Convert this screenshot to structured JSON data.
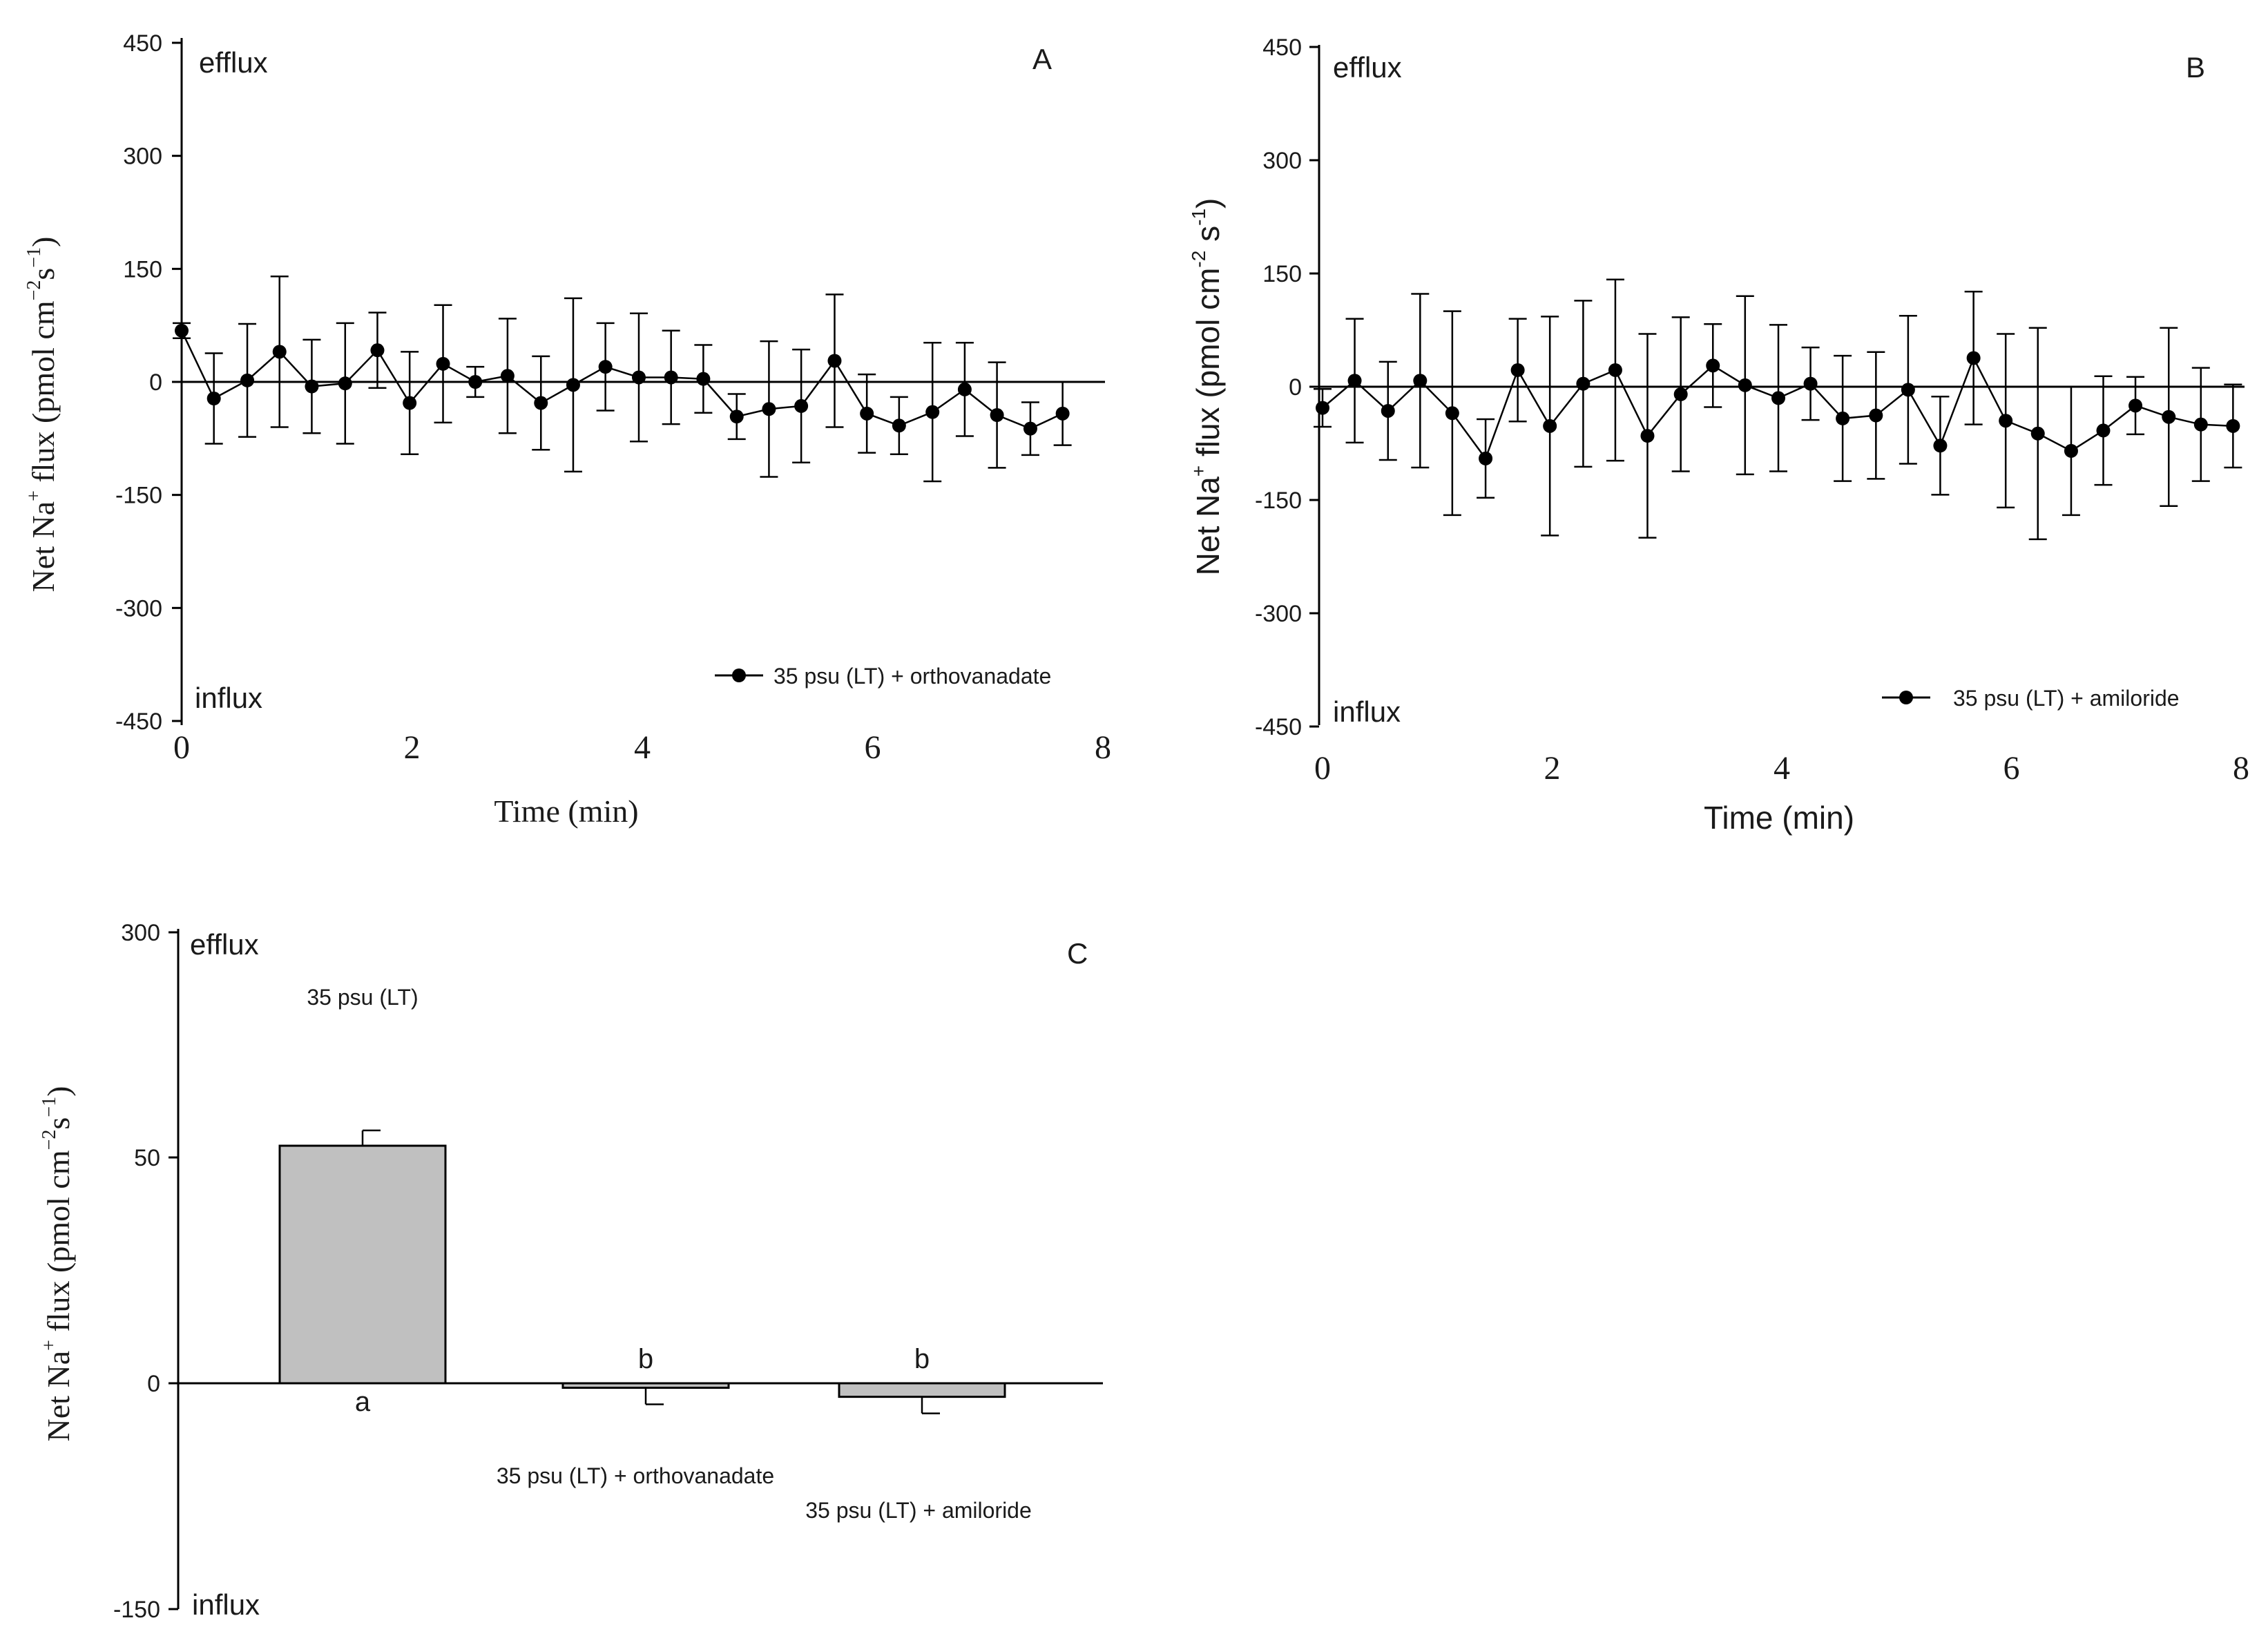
{
  "chart_data": [
    {
      "type": "line",
      "panel": "A",
      "xlabel": "Time (min)",
      "ylabel": "Net Na⁺ flux (pmol cm⁻² s⁻¹)",
      "xlim": [
        0,
        8
      ],
      "ylim": [
        -450,
        450
      ],
      "xticks": [
        0,
        2,
        4,
        6,
        8
      ],
      "yticks": [
        450,
        300,
        150,
        0,
        -150,
        -300,
        -450
      ],
      "top_label": "efflux",
      "bottom_label": "influx",
      "series": [
        {
          "name": "35 psu (LT) + orthovanadate",
          "x": [
            0,
            0.28,
            0.57,
            0.85,
            1.13,
            1.42,
            1.7,
            1.98,
            2.27,
            2.55,
            2.83,
            3.12,
            3.4,
            3.68,
            3.97,
            4.25,
            4.53,
            4.82,
            5.1,
            5.38,
            5.67,
            5.95,
            6.23,
            6.52,
            6.8,
            7.08,
            7.37,
            7.65
          ],
          "y": [
            68,
            -22,
            2,
            40,
            -6,
            -2,
            42,
            -28,
            24,
            0,
            8,
            -28,
            -4,
            20,
            6,
            6,
            4,
            -46,
            -36,
            -32,
            28,
            -42,
            -58,
            -40,
            -10,
            -44,
            -62,
            -42
          ],
          "err": [
            10,
            60,
            75,
            100,
            62,
            80,
            50,
            68,
            78,
            20,
            76,
            62,
            115,
            58,
            85,
            62,
            45,
            30,
            90,
            75,
            88,
            52,
            38,
            92,
            62,
            70,
            35,
            42
          ]
        }
      ]
    },
    {
      "type": "line",
      "panel": "B",
      "xlabel": "Time (min)",
      "ylabel": "Net Na⁺ flux (pmol cm⁻² s⁻¹)",
      "xlim": [
        0,
        8
      ],
      "ylim": [
        -450,
        450
      ],
      "xticks": [
        0,
        2,
        4,
        6,
        8
      ],
      "yticks": [
        450,
        300,
        150,
        0,
        -150,
        -300,
        -450
      ],
      "top_label": "efflux",
      "bottom_label": "influx",
      "series": [
        {
          "name": "35 psu (LT) + amiloride",
          "x": [
            0,
            0.28,
            0.57,
            0.85,
            1.13,
            1.42,
            1.7,
            1.98,
            2.27,
            2.55,
            2.83,
            3.12,
            3.4,
            3.68,
            3.97,
            4.25,
            4.53,
            4.82,
            5.1,
            5.38,
            5.67,
            5.95,
            6.23,
            6.52,
            6.8,
            7.08,
            7.37,
            7.65,
            7.93
          ],
          "y": [
            -28,
            8,
            -32,
            8,
            -35,
            -95,
            22,
            -52,
            4,
            22,
            -65,
            -10,
            28,
            2,
            -15,
            4,
            -42,
            -38,
            -4,
            -78,
            38,
            -45,
            -62,
            -85,
            -58,
            -25,
            -40,
            -50,
            -52
          ],
          "err": [
            25,
            82,
            65,
            115,
            135,
            52,
            68,
            145,
            110,
            120,
            135,
            102,
            55,
            118,
            97,
            48,
            83,
            84,
            98,
            65,
            88,
            115,
            140,
            85,
            72,
            38,
            118,
            75,
            55
          ]
        }
      ]
    },
    {
      "type": "bar",
      "panel": "C",
      "ylabel": "Net Na⁺ flux (pmol cm⁻² s⁻¹)",
      "ylim": [
        -150,
        300
      ],
      "yticks": [
        300,
        50,
        0,
        -150
      ],
      "top_label": "efflux",
      "bottom_label": "influx",
      "categories": [
        "35 psu (LT)",
        "35 psu (LT) + orthovanadate",
        "35 psu (LT) + amiloride"
      ],
      "values": [
        63,
        -3,
        -9
      ],
      "err": [
        17,
        11,
        11
      ],
      "significance": [
        "a",
        "b",
        "b"
      ]
    }
  ],
  "panels": {
    "A": {
      "letter": "A",
      "efflux": "efflux",
      "influx": "influx",
      "legend": "35 psu (LT) + orthovanadate",
      "xlabel": "Time (min)",
      "ylabel_main": "Net Na",
      "ylabel_rest": " flux (pmol cm",
      "ylabel_end": "s",
      "ylabel_close": ")",
      "sup_plus": "+",
      "sup_m2": "−2",
      "sup_m1": "−1"
    },
    "B": {
      "letter": "B",
      "efflux": "efflux",
      "influx": "influx",
      "legend": "35 psu (LT) + amiloride",
      "xlabel": "Time (min)",
      "ylabel_main": "Net Na",
      "ylabel_rest": " flux (pmol cm",
      "ylabel_end": " s",
      "ylabel_close": ")",
      "sup_plus": "+",
      "sup_m2": "-2",
      "sup_m1": "-1"
    },
    "C": {
      "letter": "C",
      "efflux": "efflux",
      "influx": "influx",
      "ylabel_main": "Net Na",
      "ylabel_rest": " flux (pmol cm",
      "ylabel_end": "s",
      "ylabel_close": ")",
      "sup_plus": "+",
      "sup_m2": "−2",
      "sup_m1": "−1"
    }
  }
}
